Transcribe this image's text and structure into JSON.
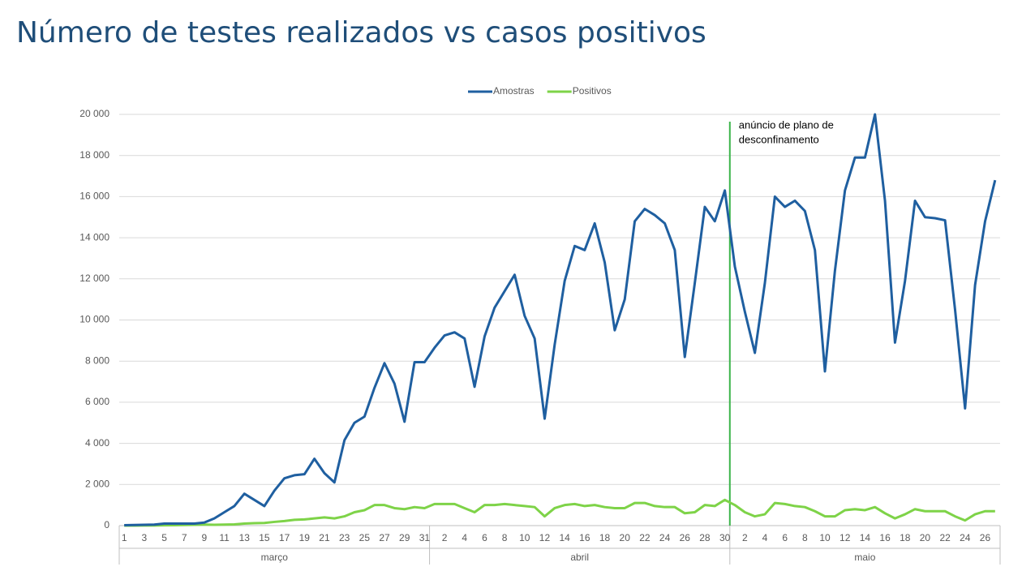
{
  "chart_data": {
    "type": "line",
    "title": "Número de testes realizados vs casos positivos",
    "category_groups": [
      {
        "name": "março",
        "categories": [
          "1",
          null,
          "3",
          null,
          "5",
          null,
          "7",
          null,
          "9",
          null,
          "11",
          null,
          "13",
          null,
          "15",
          null,
          "17",
          null,
          "19",
          null,
          "21",
          null,
          "23",
          null,
          "25",
          null,
          "27",
          null,
          "29",
          null,
          "31"
        ]
      },
      {
        "name": "abril",
        "categories": [
          null,
          "2",
          null,
          "4",
          null,
          "6",
          null,
          "8",
          null,
          "10",
          null,
          "12",
          null,
          "14",
          null,
          "16",
          null,
          "18",
          null,
          "20",
          null,
          "22",
          null,
          "24",
          null,
          "26",
          null,
          "28",
          null,
          "30"
        ]
      },
      {
        "name": "maio",
        "categories": [
          null,
          "2",
          null,
          "4",
          null,
          "6",
          null,
          "8",
          null,
          "10",
          null,
          "12",
          null,
          "14",
          null,
          "16",
          null,
          "18",
          null,
          "20",
          null,
          "22",
          null,
          "24",
          null,
          "26",
          null
        ]
      }
    ],
    "series": [
      {
        "name": "Amostras",
        "color": "#1f5fa0",
        "values": [
          20,
          30,
          40,
          50,
          100,
          100,
          100,
          100,
          150,
          350,
          650,
          950,
          1550,
          1250,
          950,
          1700,
          2300,
          2450,
          2500,
          3250,
          2550,
          2100,
          4150,
          5000,
          5300,
          6700,
          7900,
          6900,
          5050,
          7950,
          7950,
          8650,
          9250,
          9400,
          9100,
          6750,
          9200,
          10600,
          11400,
          12200,
          10200,
          9100,
          5200,
          8800,
          11900,
          13600,
          13400,
          14700,
          12800,
          9500,
          11000,
          14800,
          15400,
          15100,
          14700,
          13400,
          8200,
          11800,
          15500,
          14800,
          16300,
          12600,
          10400,
          8400,
          11800,
          16000,
          15500,
          15800,
          15300,
          13400,
          7500,
          12400,
          16300,
          17900,
          17900,
          20000,
          15800,
          8900,
          11900,
          15800,
          15000,
          14950,
          14850,
          10500,
          5700,
          11700,
          14800,
          16800
        ]
      },
      {
        "name": "Positivos",
        "color": "#7ed348",
        "values": [
          0,
          2,
          4,
          5,
          13,
          20,
          30,
          40,
          50,
          40,
          50,
          60,
          100,
          120,
          130,
          180,
          220,
          280,
          300,
          350,
          400,
          350,
          450,
          650,
          750,
          1000,
          1000,
          850,
          800,
          900,
          850,
          1050,
          1050,
          1050,
          850,
          650,
          1000,
          1000,
          1050,
          1000,
          950,
          900,
          450,
          850,
          1000,
          1050,
          950,
          1000,
          900,
          850,
          850,
          1100,
          1100,
          950,
          900,
          900,
          600,
          650,
          1000,
          950,
          1250,
          1000,
          650,
          450,
          550,
          1100,
          1050,
          950,
          900,
          700,
          450,
          450,
          750,
          800,
          750,
          900,
          600,
          350,
          550,
          800,
          700,
          700,
          700,
          450,
          250,
          550,
          700,
          700
        ]
      }
    ],
    "annotation": [
      "anúncio de plano de",
      "desconfinamento"
    ],
    "annotation_color": "#3cb44b",
    "ylim": [
      0,
      20000
    ],
    "yticks": [
      0,
      {
        "value": 2000,
        "label": "2 000"
      },
      {
        "value": 4000,
        "label": "4 000"
      },
      {
        "value": 6000,
        "label": "6 000"
      },
      {
        "value": 8000,
        "label": "8 000"
      },
      {
        "value": 10000,
        "label": "10 000"
      },
      {
        "value": 12000,
        "label": "12 000"
      },
      {
        "value": 14000,
        "label": "14 000"
      },
      {
        "value": 16000,
        "label": "16 000"
      },
      {
        "value": 18000,
        "label": "18 000"
      },
      {
        "value": 20000,
        "label": "20 000"
      }
    ],
    "grid": true,
    "legend": "top"
  }
}
